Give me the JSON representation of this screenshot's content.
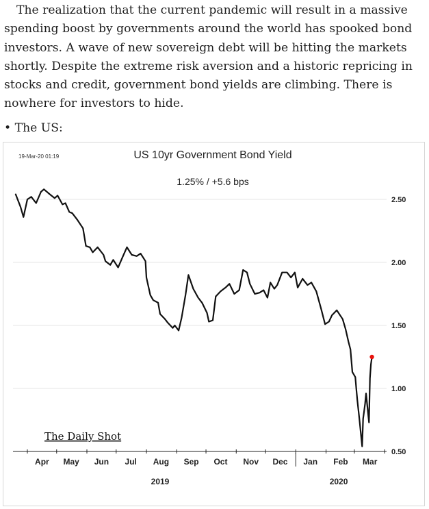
{
  "article": {
    "paragraph": "The realization that the current pandemic will result in a massive spending boost by governments around the world has spooked bond investors. A wave of new sovereign debt will be hitting the markets shortly. Despite the extreme risk aversion and a historic repricing in stocks and credit, government bond yields are climbing. There is nowhere for investors to hide.",
    "bullet_symbol": "•",
    "bullet_text": "The US:"
  },
  "chart_data": {
    "type": "line",
    "title": "US 10yr Government Bond Yield",
    "subtitle": "1.25%  /  +5.6 bps",
    "timestamp": "19-Mar-20 01:19",
    "watermark": "The Daily Shot",
    "xlabel": "",
    "ylabel": "",
    "ylim": [
      0.5,
      2.5
    ],
    "yticks": [
      "2.50",
      "2.00",
      "1.50",
      "1.00",
      "0.50"
    ],
    "yaxis_side": "right",
    "x_month_labels": [
      "Apr",
      "May",
      "Jun",
      "Jul",
      "Aug",
      "Sep",
      "Oct",
      "Nov",
      "Dec",
      "Jan",
      "Feb",
      "Mar"
    ],
    "x_year_labels": [
      "2019",
      "2020"
    ],
    "grid": true,
    "line_color": "#111111",
    "last_point_color": "#e8140e",
    "series": [
      {
        "x": [
          "2019-03-20",
          "2019-03-25",
          "2019-03-28",
          "2019-04-01",
          "2019-04-05",
          "2019-04-10",
          "2019-04-15",
          "2019-04-18",
          "2019-04-24",
          "2019-04-29",
          "2019-05-02",
          "2019-05-07",
          "2019-05-10",
          "2019-05-14",
          "2019-05-17",
          "2019-05-22",
          "2019-05-28",
          "2019-05-31",
          "2019-06-04",
          "2019-06-07",
          "2019-06-12",
          "2019-06-18",
          "2019-06-20",
          "2019-06-25",
          "2019-06-28",
          "2019-07-03",
          "2019-07-08",
          "2019-07-12",
          "2019-07-17",
          "2019-07-22",
          "2019-07-26",
          "2019-07-31",
          "2019-08-01",
          "2019-08-05",
          "2019-08-08",
          "2019-08-13",
          "2019-08-15",
          "2019-08-20",
          "2019-08-23",
          "2019-08-28",
          "2019-08-30",
          "2019-09-03",
          "2019-09-06",
          "2019-09-10",
          "2019-09-13",
          "2019-09-18",
          "2019-09-23",
          "2019-09-27",
          "2019-10-02",
          "2019-10-04",
          "2019-10-08",
          "2019-10-11",
          "2019-10-16",
          "2019-10-21",
          "2019-10-25",
          "2019-10-30",
          "2019-11-04",
          "2019-11-08",
          "2019-11-12",
          "2019-11-15",
          "2019-11-20",
          "2019-11-25",
          "2019-11-29",
          "2019-12-03",
          "2019-12-06",
          "2019-12-10",
          "2019-12-13",
          "2019-12-18",
          "2019-12-23",
          "2019-12-27",
          "2019-12-31",
          "2020-01-03",
          "2020-01-08",
          "2020-01-13",
          "2020-01-17",
          "2020-01-22",
          "2020-01-27",
          "2020-01-31",
          "2020-02-04",
          "2020-02-07",
          "2020-02-12",
          "2020-02-18",
          "2020-02-21",
          "2020-02-24",
          "2020-02-26",
          "2020-02-28",
          "2020-03-02",
          "2020-03-03",
          "2020-03-04",
          "2020-03-06",
          "2020-03-09",
          "2020-03-10",
          "2020-03-11",
          "2020-03-12",
          "2020-03-13",
          "2020-03-16",
          "2020-03-17",
          "2020-03-18",
          "2020-03-19"
        ],
        "values": [
          2.54,
          2.44,
          2.36,
          2.5,
          2.52,
          2.47,
          2.56,
          2.58,
          2.54,
          2.51,
          2.53,
          2.46,
          2.47,
          2.4,
          2.39,
          2.34,
          2.27,
          2.13,
          2.12,
          2.08,
          2.12,
          2.06,
          2.01,
          1.98,
          2.02,
          1.96,
          2.05,
          2.12,
          2.06,
          2.05,
          2.07,
          2.01,
          1.88,
          1.74,
          1.7,
          1.68,
          1.59,
          1.55,
          1.52,
          1.48,
          1.5,
          1.46,
          1.56,
          1.74,
          1.9,
          1.79,
          1.72,
          1.68,
          1.6,
          1.53,
          1.54,
          1.73,
          1.77,
          1.8,
          1.83,
          1.75,
          1.78,
          1.94,
          1.92,
          1.83,
          1.75,
          1.76,
          1.78,
          1.72,
          1.84,
          1.79,
          1.82,
          1.92,
          1.92,
          1.88,
          1.92,
          1.8,
          1.87,
          1.82,
          1.84,
          1.77,
          1.63,
          1.51,
          1.53,
          1.58,
          1.62,
          1.55,
          1.47,
          1.37,
          1.31,
          1.13,
          1.09,
          1.0,
          0.91,
          0.77,
          0.54,
          0.76,
          0.82,
          0.88,
          0.96,
          0.73,
          1.08,
          1.19,
          1.25
        ]
      }
    ]
  }
}
